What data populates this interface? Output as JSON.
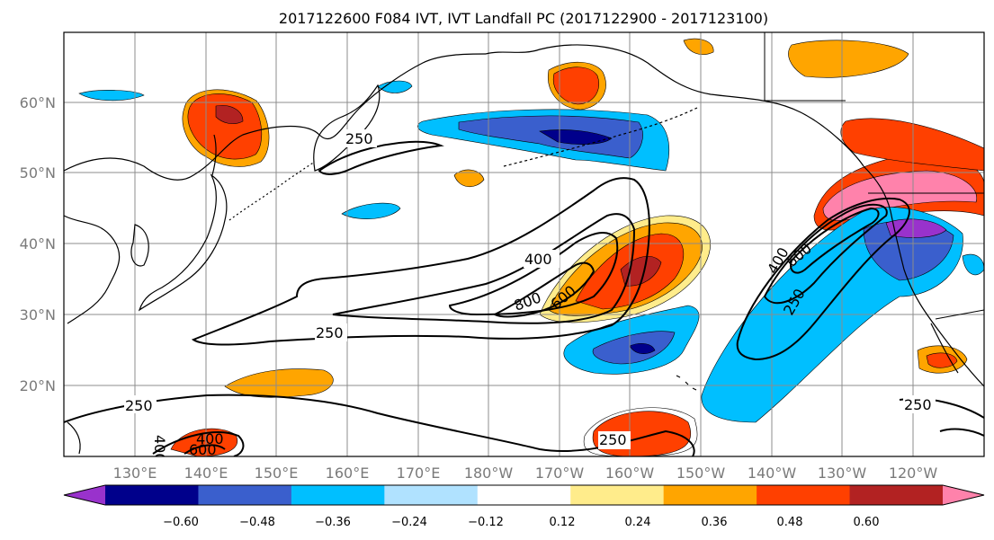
{
  "title": "2017122600 F084 IVT, IVT Landfall PC (2017122900 - 2017123100)",
  "lat_labels": [
    "20°N",
    "30°N",
    "40°N",
    "50°N",
    "60°N"
  ],
  "lon_labels": [
    "130°E",
    "140°E",
    "150°E",
    "160°E",
    "170°E",
    "180°W",
    "170°W",
    "160°W",
    "150°W",
    "140°W",
    "130°W",
    "120°W"
  ],
  "contour_labels": [
    "250",
    "250",
    "250",
    "250",
    "250",
    "250",
    "400",
    "400",
    "400",
    "400",
    "600",
    "600",
    "600",
    "800"
  ],
  "colorbar": {
    "ticks": [
      "−0.60",
      "−0.48",
      "−0.36",
      "−0.24",
      "−0.12",
      "0.12",
      "0.24",
      "0.36",
      "0.48",
      "0.60"
    ],
    "colors": [
      "#9932cc",
      "#00008b",
      "#3a5fcd",
      "#00bfff",
      "#b0e2ff",
      "#ffffff",
      "#ffec8b",
      "#ffa500",
      "#ff4000",
      "#b22222",
      "#ff82ab"
    ]
  },
  "colors": {
    "frame": "#000000",
    "grid": "#8c8c8c",
    "label_gray": "#7a7a7a"
  }
}
